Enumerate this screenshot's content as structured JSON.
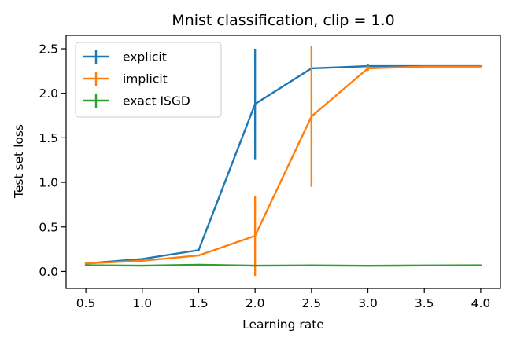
{
  "chart_data": {
    "type": "line",
    "title": "Mnist classification, clip = 1.0",
    "xlabel": "Learning rate",
    "ylabel": "Test set loss",
    "x": [
      0.5,
      1.0,
      1.5,
      2.0,
      2.5,
      3.0,
      3.5,
      4.0
    ],
    "xlim": [
      0.325,
      4.175
    ],
    "ylim": [
      -0.19,
      2.65
    ],
    "xticks": [
      0.5,
      1.0,
      1.5,
      2.0,
      2.5,
      3.0,
      3.5,
      4.0
    ],
    "yticks": [
      0.0,
      0.5,
      1.0,
      1.5,
      2.0,
      2.5
    ],
    "legend_position": "upper left",
    "grid": false,
    "error_bars": true,
    "series": [
      {
        "name": "explicit",
        "color": "#1f77b4",
        "values": [
          0.09,
          0.14,
          0.24,
          1.88,
          2.28,
          2.305,
          2.305,
          2.305
        ],
        "errors": [
          0.0,
          0.0,
          0.01,
          0.62,
          0.0,
          0.02,
          0.0,
          0.0
        ]
      },
      {
        "name": "implicit",
        "color": "#ff7f0e",
        "values": [
          0.09,
          0.12,
          0.18,
          0.4,
          1.74,
          2.28,
          2.3,
          2.3
        ],
        "errors": [
          0.0,
          0.0,
          0.0,
          0.45,
          0.79,
          0.03,
          0.0,
          0.0
        ]
      },
      {
        "name": "exact ISGD",
        "color": "#2ca02c",
        "values": [
          0.07,
          0.065,
          0.075,
          0.065,
          0.068,
          0.064,
          0.067,
          0.07
        ],
        "errors": [
          0.0,
          0.0,
          0.0,
          0.0,
          0.0,
          0.0,
          0.0,
          0.0
        ]
      }
    ]
  }
}
